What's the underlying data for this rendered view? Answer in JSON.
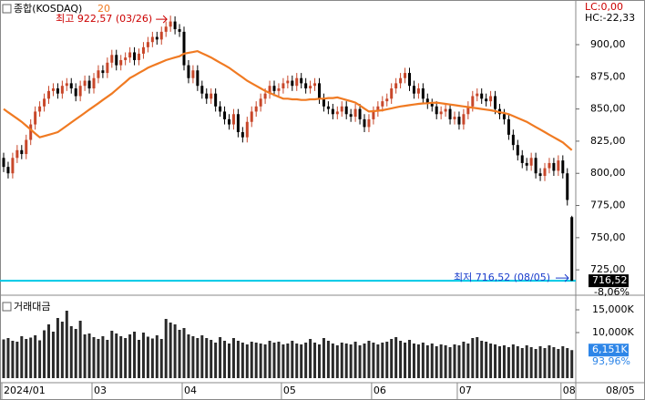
{
  "chart_data": [
    {
      "type": "candlestick",
      "title": "종합(KOSDAQ)",
      "ma_period": 20,
      "up_color": "#c8472a",
      "down_color": "#000000",
      "ma_color": "#f07a22",
      "low_line_color": "#00c8e6",
      "high_label": "최고 922,57 (03/26)",
      "low_label": "최저 716,52 (08/05)",
      "lc_label": "LC:0,00",
      "hc_label": "HC:-22,33",
      "last_price_label": "716,52",
      "change_label": "-8,06%",
      "end_date_label": "08/05",
      "ylim": [
        706.7,
        934.7
      ],
      "yticks": [
        {
          "value": 900,
          "label": "900,00"
        },
        {
          "value": 875,
          "label": "875,00"
        },
        {
          "value": 850,
          "label": "850,00"
        },
        {
          "value": 825,
          "label": "825,00"
        },
        {
          "value": 800,
          "label": "800,00"
        },
        {
          "value": 775,
          "label": "775,00"
        },
        {
          "value": 750,
          "label": "750,00"
        },
        {
          "value": 725,
          "label": "725,00"
        }
      ],
      "xticks": [
        {
          "value": 0,
          "label": "2024/01"
        },
        {
          "value": 20,
          "label": "03"
        },
        {
          "value": 40,
          "label": "04"
        },
        {
          "value": 62,
          "label": "05"
        },
        {
          "value": 82,
          "label": "06"
        },
        {
          "value": 101,
          "label": "07"
        },
        {
          "value": 124,
          "label": "08"
        }
      ],
      "open": [
        812,
        805,
        800,
        812,
        818,
        815,
        826,
        838,
        848,
        852,
        858,
        864,
        866,
        862,
        868,
        870,
        866,
        860,
        868,
        872,
        866,
        874,
        880,
        878,
        886,
        892,
        884,
        888,
        890,
        894,
        888,
        893,
        898,
        902,
        906,
        904,
        910,
        914,
        918,
        912,
        910,
        884,
        874,
        880,
        868,
        862,
        858,
        862,
        852,
        848,
        842,
        838,
        846,
        832,
        828,
        840,
        848,
        852,
        858,
        862,
        868,
        864,
        866,
        870,
        872,
        868,
        874,
        870,
        866,
        868,
        870,
        858,
        852,
        850,
        846,
        848,
        852,
        846,
        844,
        850,
        842,
        836,
        842,
        848,
        852,
        856,
        858,
        866,
        870,
        874,
        878,
        868,
        862,
        866,
        858,
        854,
        852,
        846,
        848,
        850,
        842,
        844,
        838,
        846,
        852,
        860,
        862,
        858,
        856,
        860,
        850,
        846,
        842,
        830,
        822,
        814,
        808,
        806,
        812,
        800,
        798,
        804,
        808,
        802,
        810,
        800,
        766
      ],
      "high": [
        816,
        809,
        816,
        822,
        822,
        830,
        842,
        852,
        856,
        862,
        868,
        870,
        870,
        872,
        874,
        874,
        870,
        872,
        876,
        876,
        878,
        884,
        884,
        890,
        896,
        896,
        892,
        894,
        898,
        898,
        897,
        902,
        906,
        910,
        910,
        914,
        918,
        922.57,
        922,
        916,
        914,
        888,
        884,
        884,
        872,
        866,
        866,
        866,
        856,
        852,
        846,
        850,
        850,
        836,
        844,
        852,
        856,
        862,
        866,
        872,
        872,
        870,
        874,
        876,
        876,
        878,
        878,
        874,
        872,
        874,
        874,
        862,
        856,
        854,
        852,
        856,
        856,
        850,
        854,
        854,
        846,
        846,
        852,
        856,
        860,
        862,
        870,
        874,
        878,
        882,
        882,
        872,
        870,
        870,
        862,
        858,
        856,
        852,
        854,
        854,
        848,
        848,
        850,
        856,
        864,
        866,
        866,
        862,
        864,
        864,
        854,
        850,
        846,
        834,
        826,
        818,
        812,
        816,
        816,
        804,
        808,
        812,
        812,
        814,
        814,
        804,
        767
      ],
      "low": [
        801,
        796,
        796,
        808,
        811,
        811,
        822,
        834,
        844,
        848,
        854,
        860,
        858,
        858,
        864,
        862,
        856,
        856,
        864,
        862,
        862,
        870,
        874,
        874,
        882,
        880,
        880,
        884,
        886,
        884,
        884,
        889,
        894,
        898,
        900,
        900,
        906,
        910,
        908,
        906,
        880,
        870,
        870,
        864,
        858,
        854,
        854,
        848,
        844,
        838,
        834,
        834,
        828,
        824,
        824,
        836,
        844,
        848,
        854,
        858,
        860,
        860,
        862,
        866,
        864,
        864,
        866,
        862,
        862,
        864,
        854,
        848,
        846,
        842,
        842,
        844,
        842,
        840,
        840,
        838,
        832,
        832,
        838,
        844,
        848,
        852,
        854,
        862,
        866,
        870,
        864,
        858,
        858,
        854,
        850,
        848,
        842,
        842,
        844,
        838,
        838,
        834,
        834,
        842,
        848,
        856,
        854,
        852,
        852,
        846,
        842,
        838,
        826,
        818,
        810,
        804,
        802,
        802,
        796,
        794,
        794,
        800,
        798,
        798,
        796,
        775,
        716.52
      ],
      "close": [
        805,
        800,
        812,
        818,
        815,
        826,
        838,
        848,
        852,
        858,
        864,
        866,
        862,
        868,
        870,
        866,
        860,
        868,
        872,
        866,
        874,
        880,
        878,
        886,
        892,
        884,
        888,
        890,
        894,
        888,
        893,
        898,
        902,
        906,
        904,
        910,
        914,
        918,
        912,
        910,
        884,
        874,
        880,
        868,
        862,
        858,
        862,
        852,
        848,
        842,
        838,
        846,
        832,
        828,
        840,
        848,
        852,
        858,
        862,
        868,
        864,
        866,
        870,
        872,
        868,
        874,
        870,
        866,
        868,
        870,
        858,
        852,
        850,
        846,
        848,
        852,
        846,
        844,
        850,
        842,
        836,
        842,
        848,
        852,
        856,
        858,
        866,
        870,
        874,
        878,
        868,
        862,
        866,
        858,
        854,
        852,
        846,
        848,
        850,
        842,
        844,
        838,
        846,
        852,
        860,
        862,
        858,
        856,
        860,
        850,
        846,
        842,
        830,
        822,
        814,
        808,
        806,
        812,
        800,
        798,
        804,
        808,
        802,
        810,
        800,
        779.33,
        716.52
      ],
      "ma": [
        850,
        847.5,
        845,
        842.5,
        840,
        837,
        834,
        831,
        828,
        829,
        830,
        831,
        832,
        834.5,
        837,
        839.5,
        842,
        844.5,
        847,
        849.5,
        852,
        854.5,
        857,
        859.5,
        862,
        865,
        868,
        871,
        874,
        876,
        878,
        880,
        882,
        883.5,
        885,
        886.5,
        888,
        889,
        890,
        891,
        893,
        893.7,
        894.3,
        895,
        893.3,
        891.7,
        890,
        888,
        886,
        884,
        882,
        879.5,
        877,
        874.5,
        872,
        870,
        868,
        866,
        864,
        862.5,
        861,
        859.5,
        858,
        858,
        857.5,
        857.5,
        857,
        857,
        857.5,
        857.5,
        858,
        858,
        858.5,
        858.5,
        859,
        858,
        857,
        856,
        855,
        852.7,
        850.3,
        848,
        848.3,
        848.7,
        849,
        849.8,
        850.5,
        851.3,
        852,
        852.5,
        853,
        853.5,
        854,
        854.3,
        854.5,
        854.8,
        855,
        854.5,
        854,
        853.5,
        853,
        852.5,
        852,
        851.5,
        851,
        850.5,
        850,
        849.5,
        849,
        848.3,
        847.5,
        846.8,
        846,
        844.5,
        843,
        841.5,
        840,
        838,
        836,
        834,
        832,
        830,
        828,
        826,
        824,
        821,
        818
      ]
    },
    {
      "type": "bar",
      "title": "거래대금",
      "color": "#2a2a2a",
      "last_label": "6,151K",
      "ratio_label": "93,96%",
      "ylim": [
        0,
        17400
      ],
      "yticks": [
        {
          "value": 15000,
          "label": "15,000K"
        },
        {
          "value": 10000,
          "label": "10,000K"
        }
      ],
      "values": [
        8500,
        8800,
        8200,
        8000,
        9200,
        8600,
        8900,
        9400,
        8300,
        10500,
        11800,
        10200,
        13200,
        12400,
        14800,
        11400,
        10800,
        12600,
        9600,
        9800,
        9000,
        8600,
        9200,
        8400,
        10400,
        9800,
        9200,
        8800,
        9600,
        10200,
        8400,
        10000,
        9100,
        8700,
        9400,
        8600,
        13000,
        12200,
        11800,
        10600,
        11000,
        9600,
        9200,
        8800,
        9400,
        8800,
        8400,
        7800,
        9000,
        8200,
        7600,
        8800,
        8200,
        7800,
        7400,
        8000,
        7800,
        7600,
        7400,
        8200,
        7800,
        8000,
        7400,
        7600,
        8200,
        7600,
        7400,
        7800,
        8600,
        7800,
        7400,
        8800,
        8200,
        7600,
        7200,
        7800,
        7600,
        7400,
        8000,
        7200,
        7600,
        8200,
        7800,
        7400,
        7800,
        8000,
        8600,
        9000,
        8200,
        7800,
        8400,
        7600,
        7400,
        7800,
        7200,
        7600,
        7000,
        7400,
        7200,
        6800,
        7400,
        7200,
        8000,
        7600,
        8800,
        9000,
        8200,
        8000,
        7600,
        7400,
        7000,
        7200,
        6800,
        7400,
        7000,
        6600,
        7200,
        6800,
        6400,
        7000,
        6600,
        7200,
        6800,
        6400,
        7000,
        6600,
        6151
      ]
    }
  ]
}
